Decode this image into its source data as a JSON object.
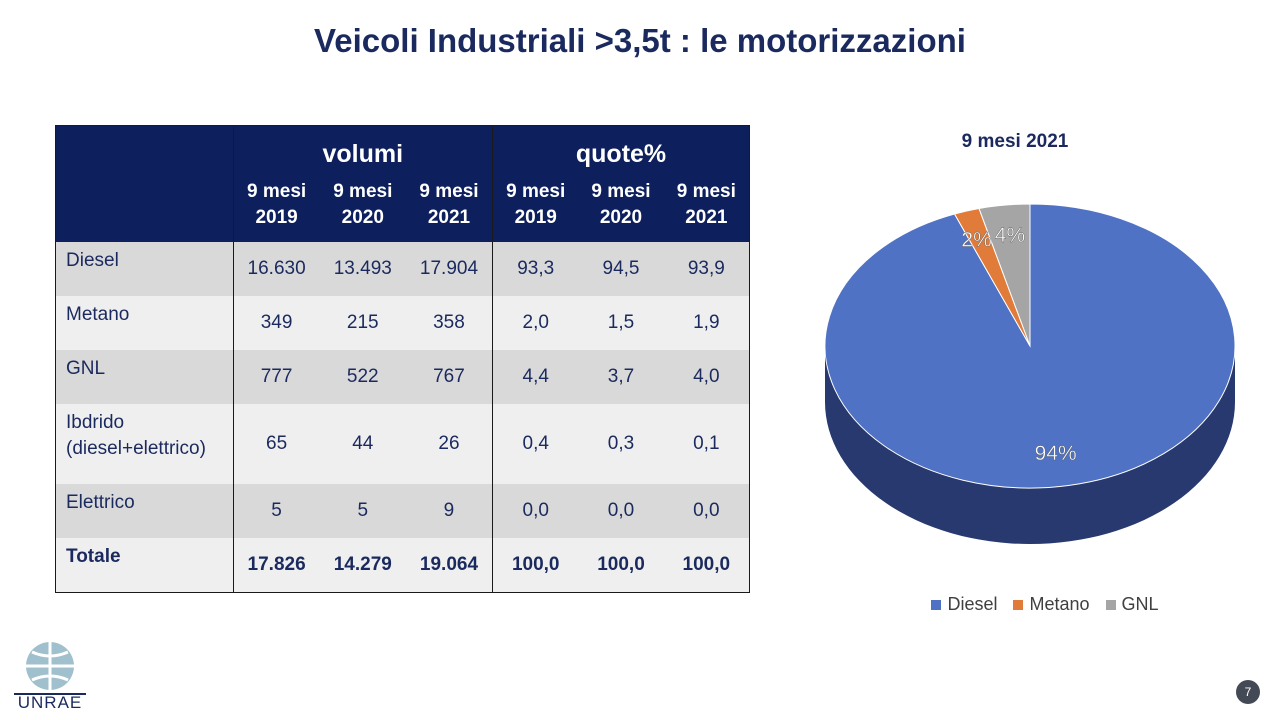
{
  "title": "Veicoli Industriali >3,5t : le motorizzazioni",
  "table": {
    "group_headers": [
      "volumi",
      "quote%"
    ],
    "col_headers": [
      {
        "line1": "9 mesi",
        "line2": "2019"
      },
      {
        "line1": "9 mesi",
        "line2": "2020"
      },
      {
        "line1": "9 mesi",
        "line2": "2021"
      },
      {
        "line1": "9 mesi",
        "line2": "2019"
      },
      {
        "line1": "9 mesi",
        "line2": "2020"
      },
      {
        "line1": "9 mesi",
        "line2": "2021"
      }
    ],
    "rows": [
      {
        "label": "Diesel",
        "label2": "",
        "cells": [
          "16.630",
          "13.493",
          "17.904",
          "93,3",
          "94,5",
          "93,9"
        ]
      },
      {
        "label": "Metano",
        "label2": "",
        "cells": [
          "349",
          "215",
          "358",
          "2,0",
          "1,5",
          "1,9"
        ]
      },
      {
        "label": "GNL",
        "label2": "",
        "cells": [
          "777",
          "522",
          "767",
          "4,4",
          "3,7",
          "4,0"
        ]
      },
      {
        "label": "Ibdrido",
        "label2": "(diesel+elettrico)",
        "cells": [
          "65",
          "44",
          "26",
          "0,4",
          "0,3",
          "0,1"
        ]
      },
      {
        "label": "Elettrico",
        "label2": "",
        "cells": [
          "5",
          "5",
          "9",
          "0,0",
          "0,0",
          "0,0"
        ]
      },
      {
        "label": "Totale",
        "label2": "",
        "cells": [
          "17.826",
          "14.279",
          "19.064",
          "100,0",
          "100,0",
          "100,0"
        ]
      }
    ]
  },
  "chart_data": {
    "type": "pie",
    "title": "9 mesi 2021",
    "categories": [
      "Diesel",
      "Metano",
      "GNL"
    ],
    "values": [
      94,
      2,
      4
    ],
    "labels": [
      "94%",
      "2%",
      "4%"
    ],
    "colors": [
      "#4f72c4",
      "#e07b39",
      "#a5a5a5"
    ],
    "legend": "bottom",
    "style": "3d"
  },
  "logo_text": "UNRAE",
  "page_number": "7"
}
